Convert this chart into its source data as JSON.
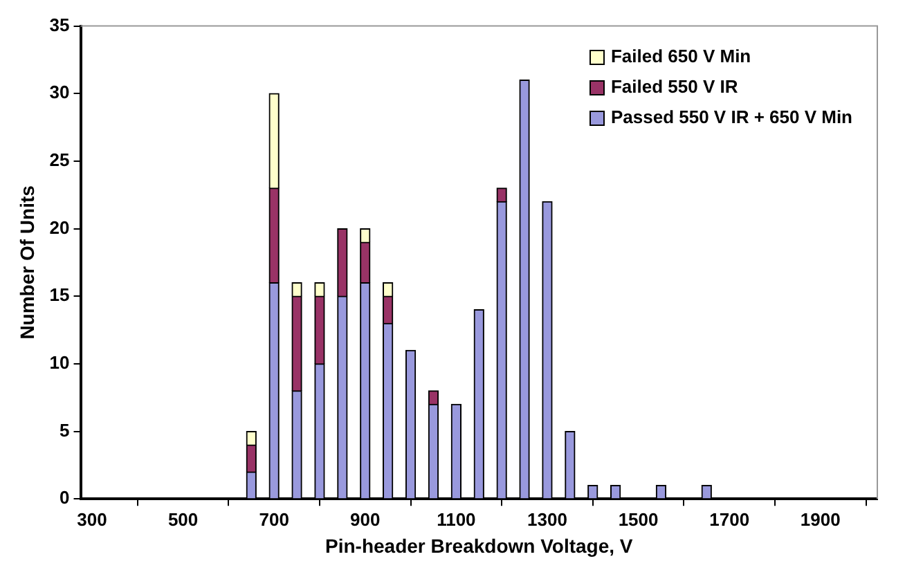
{
  "chart_data": {
    "type": "bar",
    "xlabel": "Pin-header Breakdown Voltage, V",
    "ylabel": "Number Of Units",
    "stacked": true,
    "x": [
      650,
      700,
      750,
      800,
      850,
      900,
      950,
      1000,
      1050,
      1100,
      1150,
      1200,
      1250,
      1300,
      1350,
      1400,
      1450,
      1550,
      1650
    ],
    "series": [
      {
        "name": "Passed 550 V IR + 650 V Min",
        "color": "#9999dd",
        "values": [
          2,
          16,
          8,
          10,
          15,
          16,
          13,
          11,
          7,
          7,
          14,
          22,
          31,
          22,
          5,
          1,
          1,
          1,
          1
        ]
      },
      {
        "name": "Failed 550 V IR",
        "color": "#993366",
        "values": [
          2,
          7,
          7,
          5,
          5,
          3,
          2,
          null,
          1,
          null,
          null,
          1,
          null,
          null,
          null,
          null,
          null,
          null,
          null
        ]
      },
      {
        "name": "Failed 650 V Min",
        "color": "#ffffcc",
        "values": [
          1,
          7,
          1,
          1,
          null,
          1,
          1,
          null,
          null,
          null,
          null,
          null,
          null,
          null,
          null,
          null,
          null,
          null,
          null
        ]
      }
    ],
    "xlim": [
      275,
      2025
    ],
    "xticks": [
      300,
      500,
      700,
      900,
      1100,
      1300,
      1500,
      1700,
      1900
    ],
    "ylim": [
      0,
      35
    ],
    "yticks": [
      0,
      5,
      10,
      15,
      20,
      25,
      30,
      35
    ],
    "grid": false,
    "legend": "top right"
  }
}
